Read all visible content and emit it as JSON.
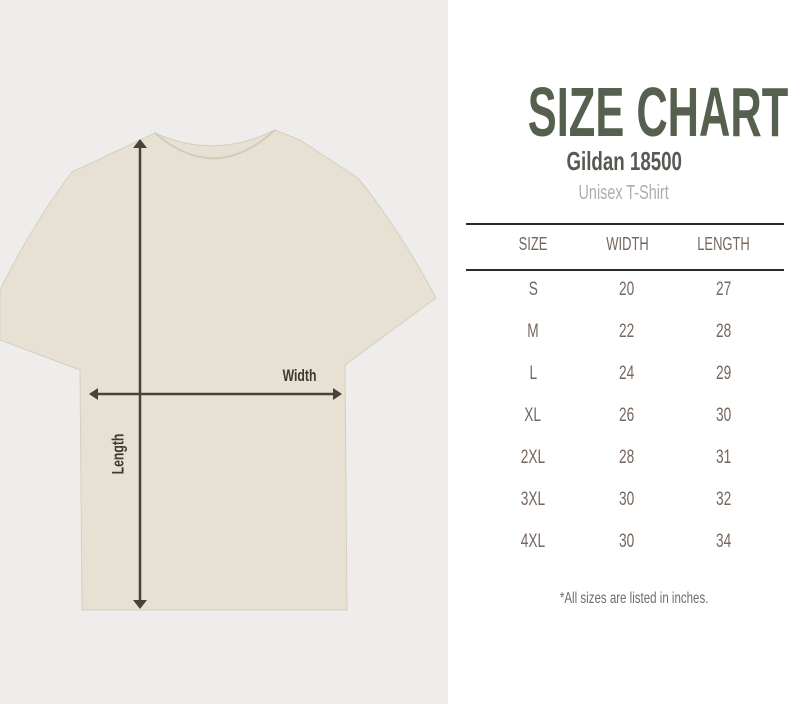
{
  "header": {
    "title": "SIZE CHART",
    "model": "Gildan 18500",
    "subtitle": "Unisex T-Shirt"
  },
  "diagram": {
    "width_label": "Width",
    "length_label": "Length",
    "shirt_color": "#e7e1d3",
    "arrow_color": "#4a4237"
  },
  "table": {
    "columns": [
      "SIZE",
      "WIDTH",
      "LENGTH"
    ],
    "rows": [
      [
        "S",
        "20",
        "27"
      ],
      [
        "M",
        "22",
        "28"
      ],
      [
        "L",
        "24",
        "29"
      ],
      [
        "XL",
        "26",
        "30"
      ],
      [
        "2XL",
        "28",
        "31"
      ],
      [
        "3XL",
        "30",
        "32"
      ],
      [
        "4XL",
        "30",
        "34"
      ]
    ]
  },
  "footnote": "*All sizes are listed in inches.",
  "colors": {
    "title": "#56604f",
    "table_text": "#75665e"
  }
}
